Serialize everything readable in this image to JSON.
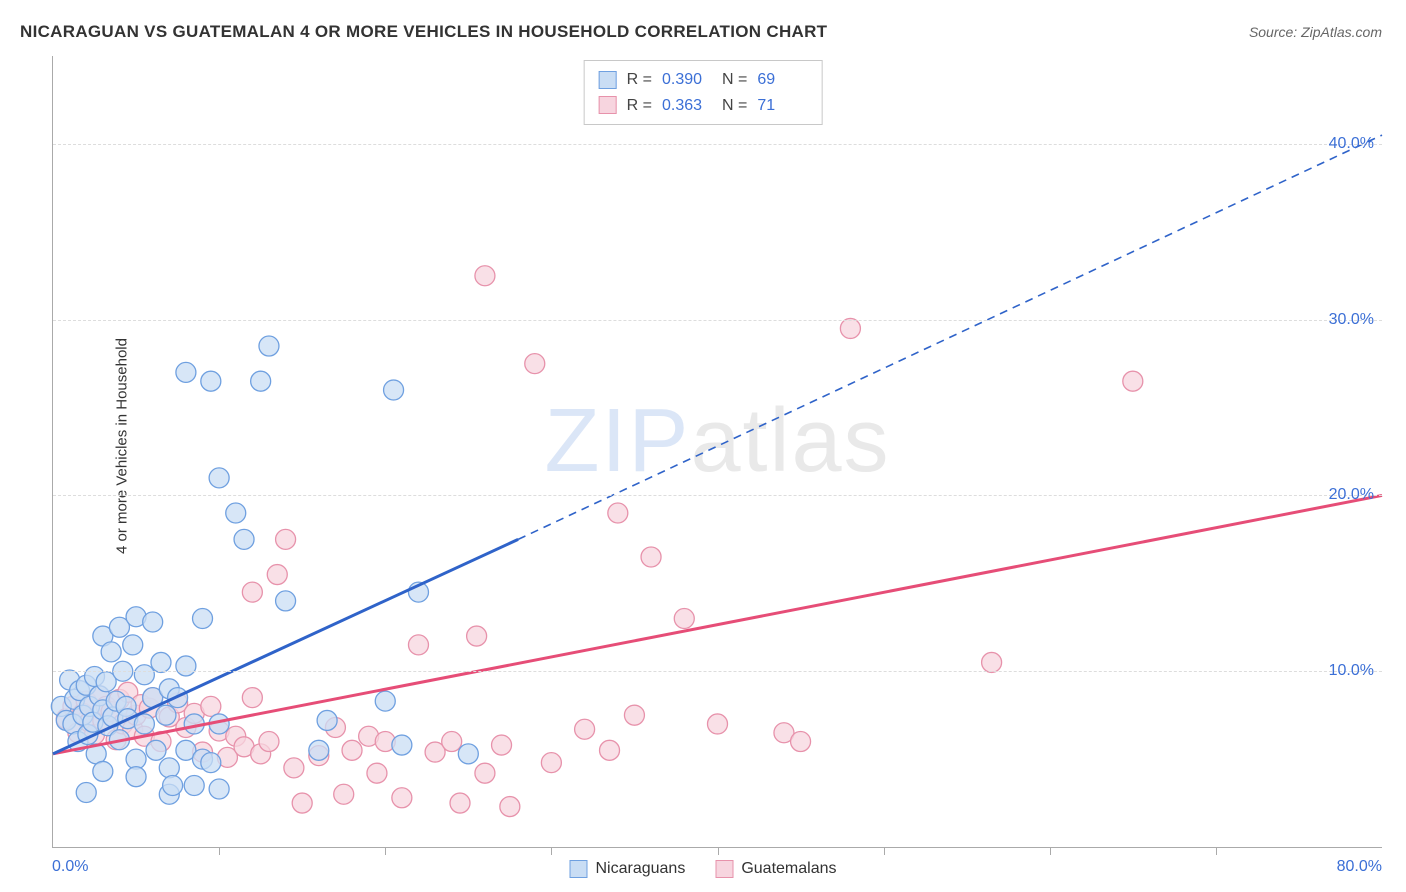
{
  "title": "NICARAGUAN VS GUATEMALAN 4 OR MORE VEHICLES IN HOUSEHOLD CORRELATION CHART",
  "source_label": "Source: ZipAtlas.com",
  "ylabel": "4 or more Vehicles in Household",
  "watermark": {
    "z": "ZIP",
    "rest": "atlas"
  },
  "axes": {
    "xlim": [
      0,
      80
    ],
    "ylim": [
      0,
      45
    ],
    "x_tick_pcts": [
      10,
      20,
      30,
      40,
      50,
      60,
      70
    ],
    "x_tick_labels": {
      "min": "0.0%",
      "max": "80.0%"
    },
    "y_gridlines": [
      {
        "v": 10,
        "label": "10.0%"
      },
      {
        "v": 20,
        "label": "20.0%"
      },
      {
        "v": 30,
        "label": "30.0%"
      },
      {
        "v": 40,
        "label": "40.0%"
      }
    ],
    "tick_color": "#aaaaaa",
    "grid_color": "#dddddd",
    "axis_label_color": "#3b6fd6",
    "axis_label_fontsize": 16,
    "ylabel_fontsize": 15,
    "title_fontsize": 17
  },
  "series": {
    "nicaraguans": {
      "label": "Nicaraguans",
      "fill": "#c9ddf4",
      "stroke": "#6fa0e0",
      "line_stroke": "#2f63c9",
      "marker_radius": 10,
      "stats": {
        "R": "0.390",
        "N": "69"
      },
      "trend": {
        "solid": [
          [
            0,
            5.3
          ],
          [
            28,
            17.5
          ]
        ],
        "dashed": [
          [
            28,
            17.5
          ],
          [
            80,
            40.5
          ]
        ]
      },
      "points": [
        [
          0.5,
          8.0
        ],
        [
          0.8,
          7.2
        ],
        [
          1.0,
          9.5
        ],
        [
          1.2,
          7.0
        ],
        [
          1.3,
          8.4
        ],
        [
          1.5,
          6.0
        ],
        [
          1.6,
          8.9
        ],
        [
          1.8,
          7.5
        ],
        [
          2.0,
          9.2
        ],
        [
          2.1,
          6.4
        ],
        [
          2.2,
          8.0
        ],
        [
          2.4,
          7.1
        ],
        [
          2.5,
          9.7
        ],
        [
          2.6,
          5.3
        ],
        [
          2.8,
          8.6
        ],
        [
          3.0,
          7.8
        ],
        [
          3.0,
          12.0
        ],
        [
          3.0,
          4.3
        ],
        [
          3.2,
          9.4
        ],
        [
          3.3,
          6.9
        ],
        [
          3.5,
          11.1
        ],
        [
          3.6,
          7.4
        ],
        [
          3.8,
          8.3
        ],
        [
          4.0,
          12.5
        ],
        [
          4.0,
          6.1
        ],
        [
          4.2,
          10.0
        ],
        [
          4.4,
          8.0
        ],
        [
          4.5,
          7.3
        ],
        [
          4.8,
          11.5
        ],
        [
          5.0,
          13.1
        ],
        [
          5.0,
          5.0
        ],
        [
          5.0,
          4.0
        ],
        [
          2.0,
          3.1
        ],
        [
          5.5,
          9.8
        ],
        [
          5.5,
          7.0
        ],
        [
          6.0,
          12.8
        ],
        [
          6.0,
          8.5
        ],
        [
          6.2,
          5.5
        ],
        [
          6.5,
          10.5
        ],
        [
          6.8,
          7.5
        ],
        [
          7.0,
          9.0
        ],
        [
          7.0,
          4.5
        ],
        [
          7.0,
          3.0
        ],
        [
          7.2,
          3.5
        ],
        [
          7.5,
          8.5
        ],
        [
          8.0,
          10.3
        ],
        [
          8.0,
          5.5
        ],
        [
          8.5,
          7.0
        ],
        [
          8.5,
          3.5
        ],
        [
          9.0,
          13.0
        ],
        [
          9.0,
          5.0
        ],
        [
          9.5,
          4.8
        ],
        [
          10.0,
          7.0
        ],
        [
          10.0,
          3.3
        ],
        [
          8.0,
          27.0
        ],
        [
          9.5,
          26.5
        ],
        [
          10.0,
          21.0
        ],
        [
          11.0,
          19.0
        ],
        [
          11.5,
          17.5
        ],
        [
          12.5,
          26.5
        ],
        [
          16.0,
          5.5
        ],
        [
          16.5,
          7.2
        ],
        [
          13.0,
          28.5
        ],
        [
          14.0,
          14.0
        ],
        [
          20.0,
          8.3
        ],
        [
          20.5,
          26.0
        ],
        [
          21.0,
          5.8
        ],
        [
          22.0,
          14.5
        ],
        [
          25.0,
          5.3
        ]
      ]
    },
    "guatemalans": {
      "label": "Guatemalans",
      "fill": "#f7d5df",
      "stroke": "#e792ab",
      "line_stroke": "#e64d77",
      "marker_radius": 10,
      "stats": {
        "R": "0.363",
        "N": "71"
      },
      "trend": {
        "solid": [
          [
            0,
            5.3
          ],
          [
            80,
            20.0
          ]
        ]
      },
      "points": [
        [
          0.8,
          7.3
        ],
        [
          1.2,
          8.0
        ],
        [
          1.5,
          6.5
        ],
        [
          1.8,
          7.6
        ],
        [
          2.0,
          8.3
        ],
        [
          2.2,
          7.1
        ],
        [
          2.5,
          6.4
        ],
        [
          2.8,
          8.6
        ],
        [
          3.0,
          7.2
        ],
        [
          3.2,
          8.0
        ],
        [
          3.5,
          7.7
        ],
        [
          3.8,
          6.1
        ],
        [
          4.0,
          8.4
        ],
        [
          4.2,
          7.0
        ],
        [
          4.5,
          8.8
        ],
        [
          4.8,
          6.7
        ],
        [
          5.0,
          7.5
        ],
        [
          5.3,
          8.1
        ],
        [
          5.5,
          6.3
        ],
        [
          5.8,
          7.9
        ],
        [
          6.0,
          8.5
        ],
        [
          6.5,
          6.0
        ],
        [
          7.0,
          7.4
        ],
        [
          7.5,
          8.2
        ],
        [
          8.0,
          6.8
        ],
        [
          8.5,
          7.6
        ],
        [
          9.0,
          5.4
        ],
        [
          9.5,
          8.0
        ],
        [
          10.0,
          6.6
        ],
        [
          10.5,
          5.1
        ],
        [
          11.0,
          6.3
        ],
        [
          11.5,
          5.7
        ],
        [
          12.0,
          8.5
        ],
        [
          12.0,
          14.5
        ],
        [
          12.5,
          5.3
        ],
        [
          13.0,
          6.0
        ],
        [
          13.5,
          15.5
        ],
        [
          14.0,
          17.5
        ],
        [
          14.5,
          4.5
        ],
        [
          15.0,
          2.5
        ],
        [
          16.0,
          5.2
        ],
        [
          17.0,
          6.8
        ],
        [
          17.5,
          3.0
        ],
        [
          18.0,
          5.5
        ],
        [
          19.0,
          6.3
        ],
        [
          19.5,
          4.2
        ],
        [
          20.0,
          6.0
        ],
        [
          21.0,
          2.8
        ],
        [
          22.0,
          11.5
        ],
        [
          23.0,
          5.4
        ],
        [
          24.0,
          6.0
        ],
        [
          24.5,
          2.5
        ],
        [
          25.5,
          12.0
        ],
        [
          26.0,
          32.5
        ],
        [
          26.0,
          4.2
        ],
        [
          27.0,
          5.8
        ],
        [
          27.5,
          2.3
        ],
        [
          29.0,
          27.5
        ],
        [
          30.0,
          4.8
        ],
        [
          32.0,
          6.7
        ],
        [
          33.5,
          5.5
        ],
        [
          34.0,
          19.0
        ],
        [
          35.0,
          7.5
        ],
        [
          36.0,
          16.5
        ],
        [
          38.0,
          13.0
        ],
        [
          40.0,
          7.0
        ],
        [
          44.0,
          6.5
        ],
        [
          48.0,
          29.5
        ],
        [
          56.5,
          10.5
        ],
        [
          65.0,
          26.5
        ],
        [
          45.0,
          6.0
        ]
      ]
    }
  },
  "legend": {
    "order": [
      "nicaraguans",
      "guatemalans"
    ]
  },
  "stats_box": {
    "order": [
      "nicaraguans",
      "guatemalans"
    ]
  }
}
